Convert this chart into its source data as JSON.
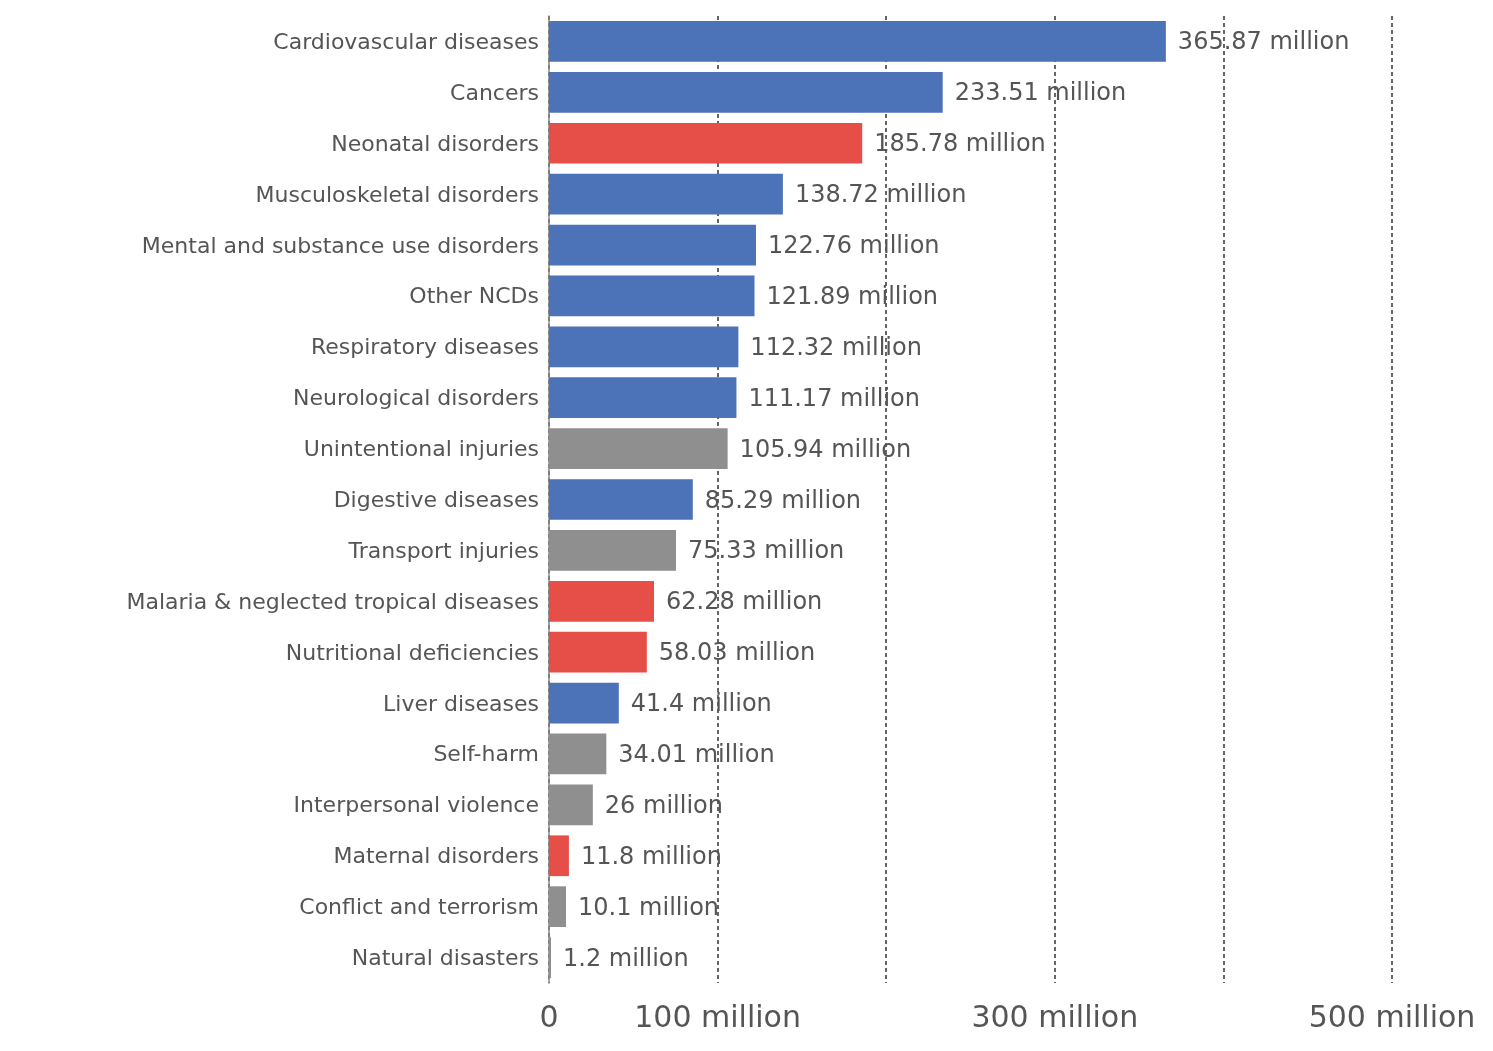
{
  "chart_data": {
    "type": "bar",
    "orientation": "horizontal",
    "categories": [
      "Cardiovascular diseases",
      "Cancers",
      "Neonatal disorders",
      "Musculoskeletal disorders",
      "Mental and substance use disorders",
      "Other NCDs",
      "Respiratory diseases",
      "Neurological disorders",
      "Unintentional injuries",
      "Digestive diseases",
      "Transport injuries",
      "Malaria & neglected tropical diseases",
      "Nutritional deficiencies",
      "Liver diseases",
      "Self-harm",
      "Interpersonal violence",
      "Maternal disorders",
      "Conflict and terrorism",
      "Natural disasters"
    ],
    "values": [
      365.87,
      233.51,
      185.78,
      138.72,
      122.76,
      121.89,
      112.32,
      111.17,
      105.94,
      85.29,
      75.33,
      62.28,
      58.03,
      41.4,
      34.01,
      26,
      11.8,
      10.1,
      1.2
    ],
    "value_labels": [
      "365.87 million",
      "233.51 million",
      "185.78 million",
      "138.72 million",
      "122.76 million",
      "121.89 million",
      "112.32 million",
      "111.17 million",
      "105.94 million",
      "85.29 million",
      "75.33 million",
      "62.28 million",
      "58.03 million",
      "41.4 million",
      "34.01 million",
      "26 million",
      "11.8 million",
      "10.1 million",
      "1.2 million"
    ],
    "colors": [
      "#4c72b8",
      "#4c72b8",
      "#e64e48",
      "#4c72b8",
      "#4c72b8",
      "#4c72b8",
      "#4c72b8",
      "#4c72b8",
      "#8f8f8f",
      "#4c72b8",
      "#8f8f8f",
      "#e64e48",
      "#e64e48",
      "#4c72b8",
      "#8f8f8f",
      "#8f8f8f",
      "#e64e48",
      "#8f8f8f",
      "#8f8f8f"
    ],
    "xlim": [
      0,
      500
    ],
    "xticks": [
      0,
      {
        "value": 100,
        "label": "100 million"
      },
      {
        "value": 200,
        "label": null
      },
      {
        "value": 300,
        "label": "300 million"
      },
      {
        "value": 400,
        "label": null
      },
      {
        "value": 500,
        "label": "500 million"
      }
    ],
    "grid": "x"
  }
}
